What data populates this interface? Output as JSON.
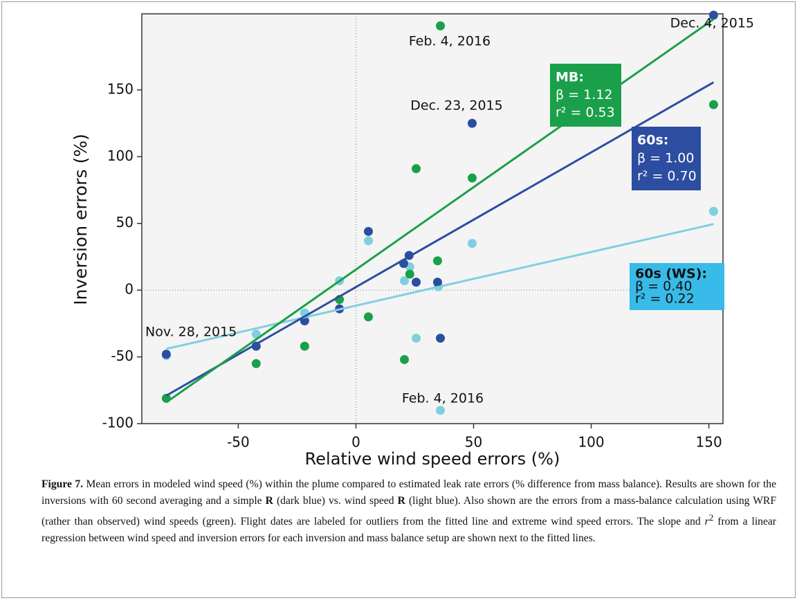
{
  "chart_data": {
    "type": "scatter",
    "xlabel": "Relative wind speed errors (%)",
    "ylabel": "Inversion errors (%)",
    "xlim": [
      -91,
      156
    ],
    "ylim": [
      -100,
      207
    ],
    "xticks": [
      -50,
      0,
      50,
      100,
      150
    ],
    "yticks": [
      -100,
      -50,
      0,
      50,
      100,
      150
    ],
    "series": [
      {
        "name": "60s (WS):",
        "color": "#80cfe0",
        "box_color": "#38bbe8",
        "text_color": "#111111",
        "x": [
          152,
          5.3,
          49.4,
          22.9,
          20.6,
          -7,
          35,
          -21.8,
          -42.4,
          -80.6,
          25.6,
          35.9
        ],
        "values": [
          59,
          37,
          35,
          17.5,
          7,
          7,
          2.6,
          -17,
          -33,
          -49,
          -36,
          -90
        ],
        "fit": {
          "x": [
            -80.6,
            152
          ],
          "values": [
            -44,
            49.5
          ]
        },
        "stats": [
          "β = 0.40",
          "r² = 0.22"
        ]
      },
      {
        "name": "60s:",
        "color": "#2a4ea0",
        "box_color": "#2c4da0",
        "text_color": "#ffffff",
        "x": [
          152,
          49.4,
          5.3,
          22.6,
          20.3,
          25.6,
          34.7,
          35.9,
          -7,
          -21.8,
          -42.4,
          -80.6
        ],
        "values": [
          206,
          125,
          44,
          26,
          20,
          6,
          6,
          -36,
          -14,
          -23,
          -42,
          -48
        ],
        "fit": {
          "x": [
            -80.6,
            152
          ],
          "values": [
            -79,
            155.7
          ]
        },
        "stats": [
          "β = 1.00",
          "r² = 0.70"
        ]
      },
      {
        "name": "MB:",
        "color": "#1aa04a",
        "box_color": "#1aa04a",
        "text_color": "#ffffff",
        "x": [
          35.9,
          152,
          25.6,
          49.4,
          34.7,
          22.9,
          -7,
          5.3,
          -21.8,
          -42.4,
          20.6,
          -80.6
        ],
        "values": [
          198,
          139,
          91,
          84,
          22,
          12,
          -7,
          -20,
          -42,
          -55,
          -52,
          -81
        ],
        "fit": {
          "x": [
            -80.6,
            152
          ],
          "values": [
            -84,
            203
          ]
        },
        "stats": [
          "β = 1.12",
          "r² = 0.53"
        ]
      }
    ],
    "annotations": [
      "Feb. 4, 2016",
      "Dec. 4, 2015",
      "Dec. 23, 2015",
      "Nov. 28, 2015",
      "Feb. 4, 2016"
    ],
    "caption": {
      "label": "Figure 7.",
      "parts": [
        " Mean errors in modeled wind speed (%) within the plume compared to estimated leak rate errors (% difference from mass balance). Results are shown for the inversions with 60 second averaging and a simple ",
        "R",
        " (dark blue) vs. wind speed ",
        "R",
        " (light blue). Also shown are the errors from a mass-balance calculation using WRF (rather than observed) wind speeds (green). Flight dates are labeled for outliers from the fitted line and extreme wind speed errors. The slope and ",
        "r",
        "2",
        " from a linear regression between wind speed and inversion errors for each inversion and mass balance setup are shown next to the fitted lines."
      ]
    }
  }
}
